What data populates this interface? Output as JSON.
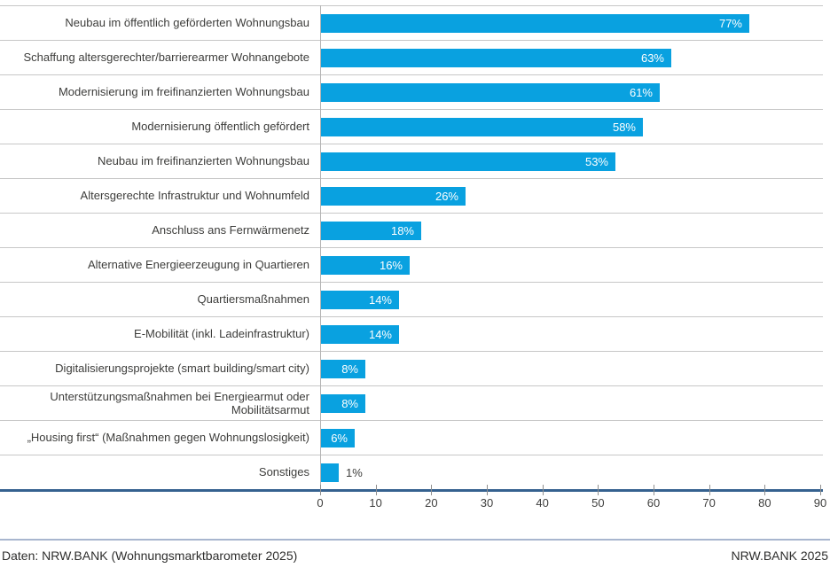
{
  "chart_data": {
    "type": "bar",
    "orientation": "horizontal",
    "categories": [
      "Neubau im öffentlich geförderten Wohnungsbau",
      "Schaffung altersgerechter/barrierearmer Wohnangebote",
      "Modernisierung im freifinanzierten Wohnungsbau",
      "Modernisierung öffentlich gefördert",
      "Neubau im freifinanzierten Wohnungsbau",
      "Altersgerechte Infrastruktur und Wohnumfeld",
      "Anschluss ans Fernwärmenetz",
      "Alternative Energieerzeugung in Quartieren",
      "Quartiersmaßnahmen",
      "E-Mobilität (inkl. Ladeinfrastruktur)",
      "Digitalisierungsprojekte (smart building/smart city)",
      "Unterstützungsmaßnahmen bei Energiearmut oder Mobilitätsarmut",
      "„Housing first“ (Maßnahmen gegen Wohnungslosigkeit)",
      "Sonstiges"
    ],
    "values": [
      77,
      63,
      61,
      58,
      53,
      26,
      18,
      16,
      14,
      14,
      8,
      8,
      6,
      1
    ],
    "value_labels": [
      "77%",
      "63%",
      "61%",
      "58%",
      "53%",
      "26%",
      "18%",
      "16%",
      "14%",
      "14%",
      "8%",
      "8%",
      "6%",
      "1%"
    ],
    "title": "",
    "xlabel": "",
    "ylabel": "",
    "xlim": [
      0,
      90
    ],
    "x_ticks": [
      0,
      10,
      20,
      30,
      40,
      50,
      60,
      70,
      80,
      90
    ],
    "grid": false,
    "legend": false,
    "bar_color": "#09a1e0",
    "axis_line_color": "#35618f",
    "separator_color": "#c7c7c7"
  },
  "footer": {
    "source": "Daten: NRW.BANK (Wohnungsmarktbarometer 2025)",
    "brand": "NRW.BANK 2025"
  }
}
